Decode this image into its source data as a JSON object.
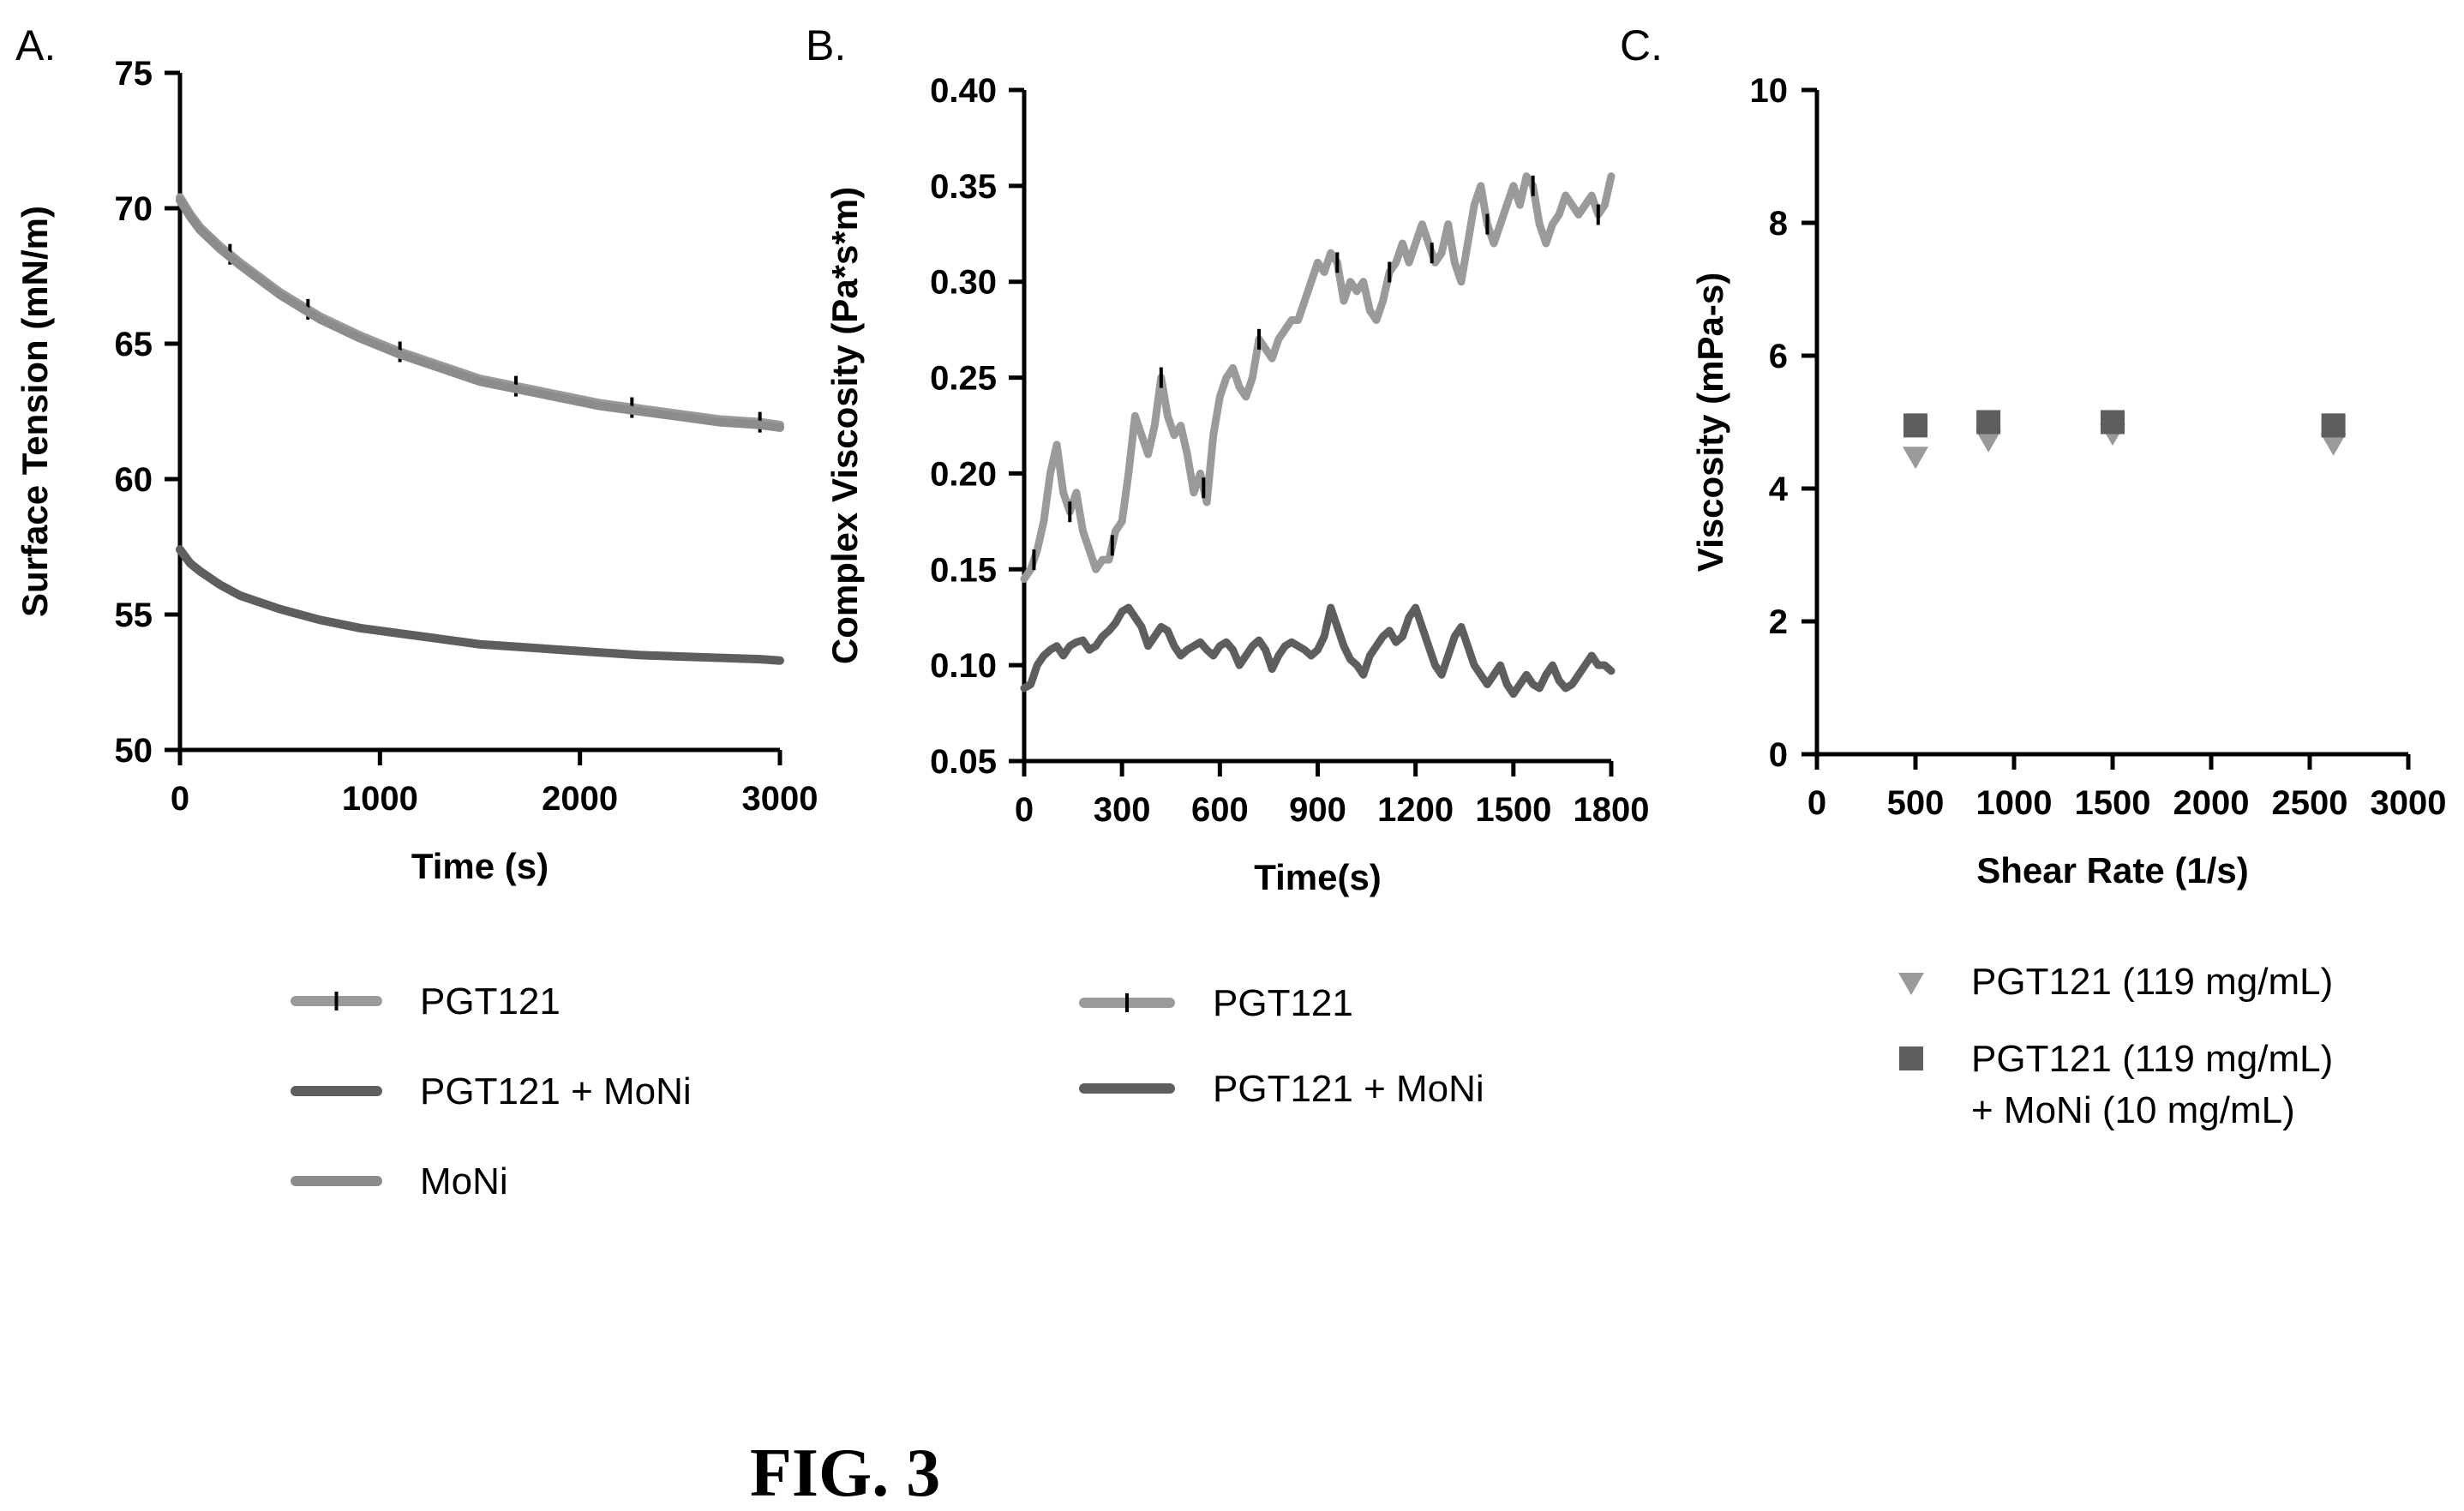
{
  "figure": {
    "caption": "FIG. 3"
  },
  "colors": {
    "pgt121": "#9a9a9a",
    "pgt121_moni": "#5e5e5e",
    "moni": "#8c8c8c",
    "axis": "#000000"
  },
  "chart_data": [
    {
      "panel": "A.",
      "type": "line",
      "title": "",
      "xlabel": "Time (s)",
      "ylabel": "Surface  Tension (mN/m)",
      "xlim": [
        0,
        3000
      ],
      "ylim": [
        50,
        75
      ],
      "xticks": [
        0,
        1000,
        2000,
        3000
      ],
      "yticks": [
        50,
        55,
        60,
        65,
        70,
        75
      ],
      "legend_position": "below",
      "series": [
        {
          "name": "PGT121",
          "marker": "tick",
          "x": [
            0,
            50,
            100,
            200,
            300,
            500,
            700,
            900,
            1100,
            1300,
            1500,
            1700,
            1900,
            2100,
            2300,
            2500,
            2700,
            2900,
            3000
          ],
          "y": [
            70.4,
            69.8,
            69.3,
            68.6,
            68.0,
            66.9,
            66.0,
            65.3,
            64.7,
            64.2,
            63.7,
            63.4,
            63.1,
            62.8,
            62.6,
            62.4,
            62.2,
            62.1,
            62.0
          ],
          "tick_x": [
            250,
            640,
            1100,
            1680,
            2260,
            2900
          ]
        },
        {
          "name": "PGT121  + MoNi",
          "marker": "none",
          "x": [
            0,
            50,
            100,
            200,
            300,
            500,
            700,
            900,
            1100,
            1300,
            1500,
            1700,
            1900,
            2100,
            2300,
            2500,
            2700,
            2900,
            3000
          ],
          "y": [
            57.4,
            56.9,
            56.6,
            56.1,
            55.7,
            55.2,
            54.8,
            54.5,
            54.3,
            54.1,
            53.9,
            53.8,
            53.7,
            53.6,
            53.5,
            53.45,
            53.4,
            53.35,
            53.3
          ]
        },
        {
          "name": "MoNi",
          "marker": "none",
          "x": [
            0,
            50,
            100,
            200,
            300,
            500,
            700,
            900,
            1100,
            1300,
            1500,
            1700,
            1900,
            2100,
            2300,
            2500,
            2700,
            2900,
            3000
          ],
          "y": [
            70.3,
            69.7,
            69.2,
            68.5,
            67.9,
            66.8,
            65.9,
            65.2,
            64.6,
            64.1,
            63.6,
            63.3,
            63.0,
            62.7,
            62.5,
            62.3,
            62.1,
            62.0,
            61.9
          ]
        }
      ]
    },
    {
      "panel": "B.",
      "type": "line",
      "title": "",
      "xlabel": "Time(s)",
      "ylabel": "Complex Viscosity (Pa*s*m)",
      "xlim": [
        0,
        1800
      ],
      "ylim": [
        0.05,
        0.4
      ],
      "xticks": [
        0,
        300,
        600,
        900,
        1200,
        1500,
        1800
      ],
      "yticks": [
        0.05,
        0.1,
        0.15,
        0.2,
        0.25,
        0.3,
        0.35,
        0.4
      ],
      "legend_position": "below",
      "series": [
        {
          "name": "PGT121",
          "marker": "tick",
          "x": [
            0,
            20,
            40,
            60,
            80,
            100,
            120,
            140,
            160,
            180,
            200,
            220,
            240,
            260,
            280,
            300,
            320,
            340,
            360,
            380,
            400,
            420,
            440,
            460,
            480,
            500,
            520,
            540,
            560,
            580,
            600,
            620,
            640,
            660,
            680,
            700,
            720,
            740,
            760,
            780,
            800,
            820,
            840,
            860,
            880,
            900,
            920,
            940,
            960,
            980,
            1000,
            1020,
            1040,
            1060,
            1080,
            1100,
            1120,
            1140,
            1160,
            1180,
            1200,
            1220,
            1240,
            1260,
            1280,
            1300,
            1320,
            1340,
            1360,
            1380,
            1400,
            1420,
            1440,
            1460,
            1480,
            1500,
            1520,
            1540,
            1560,
            1580,
            1600,
            1620,
            1640,
            1660,
            1680,
            1700,
            1720,
            1740,
            1760,
            1780,
            1800
          ],
          "y": [
            0.145,
            0.15,
            0.16,
            0.175,
            0.2,
            0.215,
            0.19,
            0.18,
            0.19,
            0.17,
            0.16,
            0.15,
            0.155,
            0.155,
            0.17,
            0.175,
            0.2,
            0.23,
            0.22,
            0.21,
            0.225,
            0.25,
            0.23,
            0.22,
            0.225,
            0.21,
            0.19,
            0.2,
            0.185,
            0.22,
            0.24,
            0.25,
            0.255,
            0.245,
            0.24,
            0.25,
            0.27,
            0.265,
            0.26,
            0.27,
            0.275,
            0.28,
            0.28,
            0.29,
            0.3,
            0.31,
            0.305,
            0.315,
            0.31,
            0.29,
            0.3,
            0.295,
            0.3,
            0.285,
            0.28,
            0.29,
            0.305,
            0.31,
            0.32,
            0.31,
            0.32,
            0.33,
            0.32,
            0.31,
            0.315,
            0.33,
            0.31,
            0.3,
            0.32,
            0.34,
            0.35,
            0.33,
            0.32,
            0.33,
            0.34,
            0.35,
            0.34,
            0.355,
            0.35,
            0.33,
            0.32,
            0.33,
            0.335,
            0.345,
            0.34,
            0.335,
            0.34,
            0.345,
            0.335,
            0.34,
            0.355
          ],
          "tick_x": [
            30,
            140,
            270,
            420,
            550,
            720,
            960,
            1120,
            1250,
            1420,
            1560,
            1760
          ]
        },
        {
          "name": "PGT121 + MoNi",
          "marker": "none",
          "x": [
            0,
            20,
            40,
            60,
            80,
            100,
            120,
            140,
            160,
            180,
            200,
            220,
            240,
            260,
            280,
            300,
            320,
            340,
            360,
            380,
            400,
            420,
            440,
            460,
            480,
            500,
            520,
            540,
            560,
            580,
            600,
            620,
            640,
            660,
            680,
            700,
            720,
            740,
            760,
            780,
            800,
            820,
            840,
            860,
            880,
            900,
            920,
            940,
            960,
            980,
            1000,
            1020,
            1040,
            1060,
            1080,
            1100,
            1120,
            1140,
            1160,
            1180,
            1200,
            1220,
            1240,
            1260,
            1280,
            1300,
            1320,
            1340,
            1360,
            1380,
            1400,
            1420,
            1440,
            1460,
            1480,
            1500,
            1520,
            1540,
            1560,
            1580,
            1600,
            1620,
            1640,
            1660,
            1680,
            1700,
            1720,
            1740,
            1760,
            1780,
            1800
          ],
          "y": [
            0.088,
            0.09,
            0.1,
            0.105,
            0.108,
            0.11,
            0.105,
            0.11,
            0.112,
            0.113,
            0.108,
            0.11,
            0.115,
            0.118,
            0.122,
            0.128,
            0.13,
            0.125,
            0.12,
            0.11,
            0.115,
            0.12,
            0.118,
            0.11,
            0.105,
            0.108,
            0.11,
            0.112,
            0.108,
            0.105,
            0.11,
            0.112,
            0.108,
            0.1,
            0.105,
            0.11,
            0.113,
            0.108,
            0.098,
            0.105,
            0.11,
            0.112,
            0.11,
            0.108,
            0.105,
            0.108,
            0.115,
            0.13,
            0.12,
            0.11,
            0.103,
            0.1,
            0.095,
            0.105,
            0.11,
            0.115,
            0.118,
            0.112,
            0.115,
            0.125,
            0.13,
            0.12,
            0.11,
            0.1,
            0.095,
            0.105,
            0.115,
            0.12,
            0.11,
            0.1,
            0.095,
            0.09,
            0.095,
            0.1,
            0.09,
            0.085,
            0.09,
            0.095,
            0.09,
            0.088,
            0.095,
            0.1,
            0.092,
            0.088,
            0.09,
            0.095,
            0.1,
            0.105,
            0.1,
            0.1,
            0.097
          ]
        }
      ]
    },
    {
      "panel": "C.",
      "type": "scatter",
      "title": "",
      "xlabel": "Shear Rate (1/s)",
      "ylabel": "Viscosity (mPa-s)",
      "xlim": [
        0,
        3000
      ],
      "ylim": [
        0,
        10
      ],
      "xticks": [
        0,
        500,
        1000,
        1500,
        2000,
        2500,
        3000
      ],
      "yticks": [
        0,
        2,
        4,
        6,
        8,
        10
      ],
      "legend_position": "below",
      "series": [
        {
          "name": "PGT121 (119 mg/mL)",
          "marker": "triangle-down",
          "x": [
            500,
            870,
            1500,
            2620
          ],
          "y": [
            4.5,
            4.75,
            4.85,
            4.7
          ]
        },
        {
          "name": "PGT121 (119 mg/mL)\n+ MoNi (10 mg/mL)",
          "name_lines": [
            "PGT121 (119 mg/mL)",
            "+ MoNi (10 mg/mL)"
          ],
          "marker": "square",
          "x": [
            500,
            870,
            1500,
            2620
          ],
          "y": [
            4.95,
            5.0,
            5.0,
            4.95
          ]
        }
      ]
    }
  ]
}
